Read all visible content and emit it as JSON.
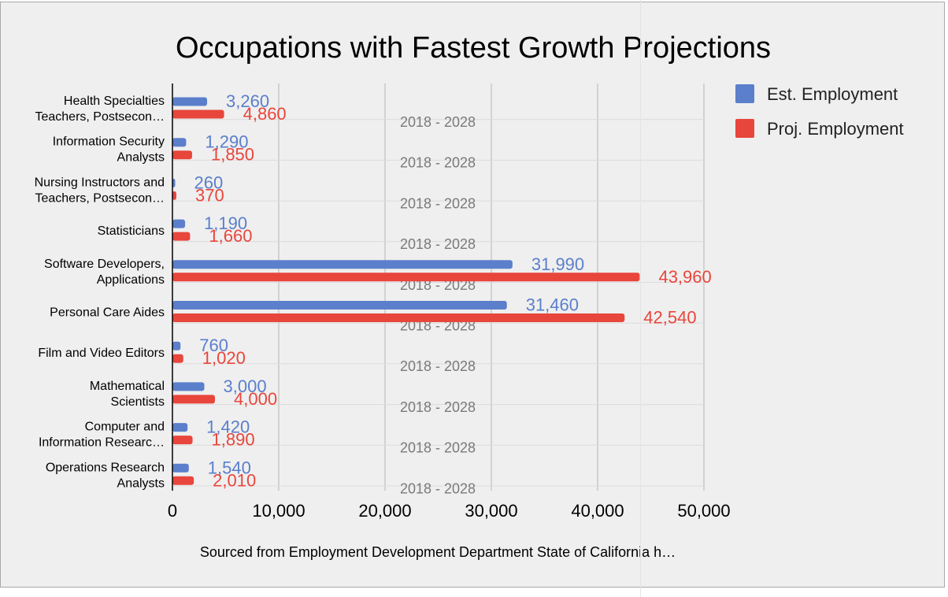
{
  "chart_data": {
    "type": "bar",
    "orientation": "horizontal",
    "title": "Occupations with Fastest Growth Projections",
    "caption": "Sourced from Employment Development Department State of California h…",
    "categories": [
      [
        "Health Specialties",
        "Teachers, Postsecon…"
      ],
      [
        "Information Security",
        "Analysts"
      ],
      [
        "Nursing Instructors and",
        "Teachers, Postsecon…"
      ],
      [
        "Statisticians"
      ],
      [
        "Software Developers,",
        "Applications"
      ],
      [
        "Personal Care Aides"
      ],
      [
        "Film and Video Editors"
      ],
      [
        "Mathematical",
        "Scientists"
      ],
      [
        "Computer and",
        "Information Researc…"
      ],
      [
        "Operations Research",
        "Analysts"
      ]
    ],
    "period_labels": [
      "2018 - 2028",
      "2018 - 2028",
      "2018 - 2028",
      "2018 - 2028",
      "2018 - 2028",
      "2018 - 2028",
      "2018 - 2028",
      "2018 - 2028",
      "2018 - 2028",
      "2018 - 2028"
    ],
    "series": [
      {
        "name": "Est. Employment",
        "color": "#5b7fcb",
        "values": [
          3260,
          1290,
          260,
          1190,
          31990,
          31460,
          760,
          3000,
          1420,
          1540
        ],
        "labels": [
          "3,260",
          "1,290",
          "260",
          "1,190",
          "31,990",
          "31,460",
          "760",
          "3,000",
          "1,420",
          "1,540"
        ]
      },
      {
        "name": "Proj. Employment",
        "color": "#e8463c",
        "values": [
          4860,
          1850,
          370,
          1660,
          43960,
          42540,
          1020,
          4000,
          1890,
          2010
        ],
        "labels": [
          "4,860",
          "1,850",
          "370",
          "1,660",
          "43,960",
          "42,540",
          "1,020",
          "4,000",
          "1,890",
          "2,010"
        ]
      }
    ],
    "xlim": [
      0,
      50000
    ],
    "xticks": [
      0,
      10000,
      20000,
      30000,
      40000,
      50000
    ],
    "xtick_labels": [
      "0",
      "10,000",
      "20,000",
      "30,000",
      "40,000",
      "50,000"
    ],
    "grid": true,
    "legend_position": "top-right"
  }
}
